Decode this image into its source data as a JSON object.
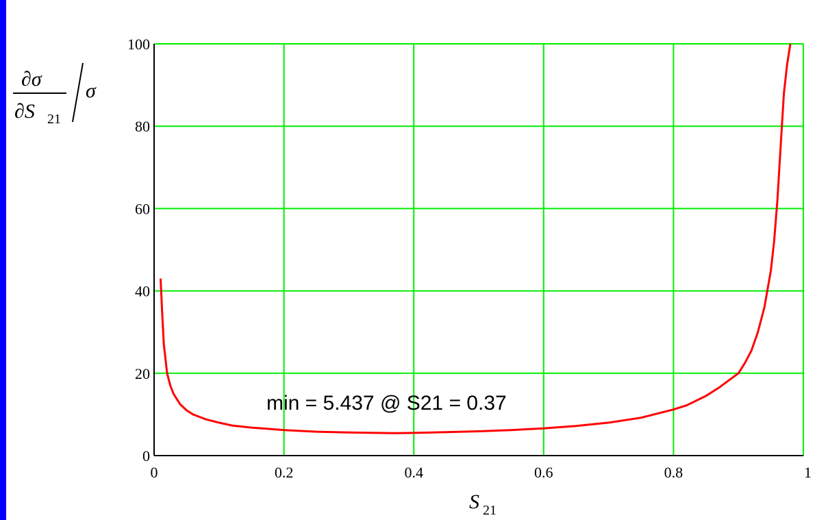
{
  "chart_data": {
    "type": "line",
    "xlabel": "S",
    "xlabel_sub": "21",
    "ylabel_parts": {
      "numerator": "∂σ",
      "denominator_base": "∂S",
      "denominator_sub": "21",
      "divisor": "σ"
    },
    "xlim": [
      0,
      1
    ],
    "ylim": [
      0,
      100
    ],
    "x_ticks": [
      {
        "value": 0,
        "label": "0"
      },
      {
        "value": 0.2,
        "label": "0.2"
      },
      {
        "value": 0.4,
        "label": "0.4"
      },
      {
        "value": 0.6,
        "label": "0.6"
      },
      {
        "value": 0.8,
        "label": "0.8"
      },
      {
        "value": 1,
        "label": "1"
      }
    ],
    "y_ticks": [
      {
        "value": 0,
        "label": "0"
      },
      {
        "value": 20,
        "label": "20"
      },
      {
        "value": 40,
        "label": "40"
      },
      {
        "value": 60,
        "label": "60"
      },
      {
        "value": 80,
        "label": "80"
      },
      {
        "value": 100,
        "label": "100"
      }
    ],
    "grid": true,
    "annotation": "min = 5.437 @ S21 = 0.37",
    "series": [
      {
        "color": "#ff0000",
        "x": [
          0.01,
          0.012,
          0.015,
          0.02,
          0.025,
          0.03,
          0.04,
          0.05,
          0.06,
          0.08,
          0.1,
          0.12,
          0.15,
          0.2,
          0.25,
          0.3,
          0.37,
          0.4,
          0.45,
          0.5,
          0.55,
          0.6,
          0.65,
          0.7,
          0.75,
          0.8,
          0.82,
          0.85,
          0.87,
          0.9,
          0.91,
          0.92,
          0.93,
          0.94,
          0.95,
          0.955,
          0.96,
          0.965,
          0.97,
          0.975,
          0.98
        ],
        "y": [
          43,
          36,
          27,
          20,
          17,
          15,
          12.5,
          11,
          10,
          8.8,
          8,
          7.3,
          6.8,
          6.2,
          5.8,
          5.6,
          5.437,
          5.5,
          5.7,
          5.9,
          6.2,
          6.6,
          7.2,
          8,
          9.2,
          11.2,
          12.2,
          14.5,
          16.5,
          20,
          22.5,
          25.5,
          30,
          36,
          45,
          52,
          62,
          75,
          88,
          95,
          100
        ]
      }
    ]
  }
}
